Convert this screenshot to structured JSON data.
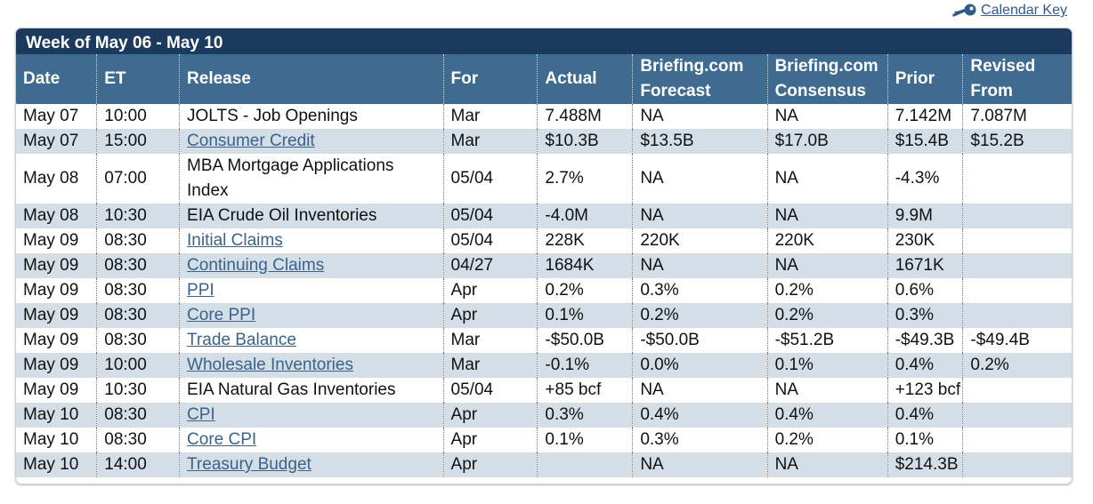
{
  "header": {
    "calendar_key_label": "Calendar Key",
    "week_title": "Week of May 06 - May 10"
  },
  "table": {
    "columns": [
      "Date",
      "ET",
      "Release",
      "For",
      "Actual",
      "Briefing.com Forecast",
      "Briefing.com Consensus",
      "Prior",
      "Revised From"
    ],
    "rows": [
      {
        "date": "May 07",
        "et": "10:00",
        "release": "JOLTS - Job Openings",
        "link": false,
        "for": "Mar",
        "actual": "7.488M",
        "forecast": "NA",
        "consensus": "NA",
        "prior": "7.142M",
        "revised": "7.087M"
      },
      {
        "date": "May 07",
        "et": "15:00",
        "release": "Consumer Credit",
        "link": true,
        "for": "Mar",
        "actual": "$10.3B",
        "forecast": "$13.5B",
        "consensus": "$17.0B",
        "prior": "$15.4B",
        "revised": "$15.2B"
      },
      {
        "date": "May 08",
        "et": "07:00",
        "release": "MBA Mortgage Applications Index",
        "link": false,
        "for": "05/04",
        "actual": "2.7%",
        "forecast": "NA",
        "consensus": "NA",
        "prior": "-4.3%",
        "revised": ""
      },
      {
        "date": "May 08",
        "et": "10:30",
        "release": "EIA Crude Oil Inventories",
        "link": false,
        "for": "05/04",
        "actual": "-4.0M",
        "forecast": "NA",
        "consensus": "NA",
        "prior": "9.9M",
        "revised": ""
      },
      {
        "date": "May 09",
        "et": "08:30",
        "release": "Initial Claims",
        "link": true,
        "for": "05/04",
        "actual": "228K",
        "forecast": "220K",
        "consensus": "220K",
        "prior": "230K",
        "revised": ""
      },
      {
        "date": "May 09",
        "et": "08:30",
        "release": "Continuing Claims",
        "link": true,
        "for": "04/27",
        "actual": "1684K",
        "forecast": "NA",
        "consensus": "NA",
        "prior": "1671K",
        "revised": ""
      },
      {
        "date": "May 09",
        "et": "08:30",
        "release": "PPI",
        "link": true,
        "for": "Apr",
        "actual": "0.2%",
        "forecast": "0.3%",
        "consensus": "0.2%",
        "prior": "0.6%",
        "revised": ""
      },
      {
        "date": "May 09",
        "et": "08:30",
        "release": "Core PPI",
        "link": true,
        "for": "Apr",
        "actual": "0.1%",
        "forecast": "0.2%",
        "consensus": "0.2%",
        "prior": "0.3%",
        "revised": ""
      },
      {
        "date": "May 09",
        "et": "08:30",
        "release": "Trade Balance",
        "link": true,
        "for": "Mar",
        "actual": "-$50.0B",
        "forecast": "-$50.0B",
        "consensus": "-$51.2B",
        "prior": "-$49.3B",
        "revised": "-$49.4B"
      },
      {
        "date": "May 09",
        "et": "10:00",
        "release": "Wholesale Inventories",
        "link": true,
        "for": "Mar",
        "actual": "-0.1%",
        "forecast": "0.0%",
        "consensus": "0.1%",
        "prior": "0.4%",
        "revised": "0.2%"
      },
      {
        "date": "May 09",
        "et": "10:30",
        "release": "EIA Natural Gas Inventories",
        "link": false,
        "for": "05/04",
        "actual": "+85 bcf",
        "forecast": "NA",
        "consensus": "NA",
        "prior": "+123 bcf",
        "revised": ""
      },
      {
        "date": "May 10",
        "et": "08:30",
        "release": "CPI",
        "link": true,
        "for": "Apr",
        "actual": "0.3%",
        "forecast": "0.4%",
        "consensus": "0.4%",
        "prior": "0.4%",
        "revised": ""
      },
      {
        "date": "May 10",
        "et": "08:30",
        "release": "Core CPI",
        "link": true,
        "for": "Apr",
        "actual": "0.1%",
        "forecast": "0.3%",
        "consensus": "0.2%",
        "prior": "0.1%",
        "revised": ""
      },
      {
        "date": "May 10",
        "et": "14:00",
        "release": "Treasury Budget",
        "link": true,
        "for": "Apr",
        "actual": "",
        "forecast": "NA",
        "consensus": "NA",
        "prior": "$214.3B",
        "revised": ""
      }
    ]
  },
  "colors": {
    "week_bar": "#1c3a5e",
    "header": "#3e6b8f",
    "alt_row": "#d3dee7",
    "link": "#3b6289"
  },
  "icons": {
    "calendar_key": "key-icon"
  }
}
